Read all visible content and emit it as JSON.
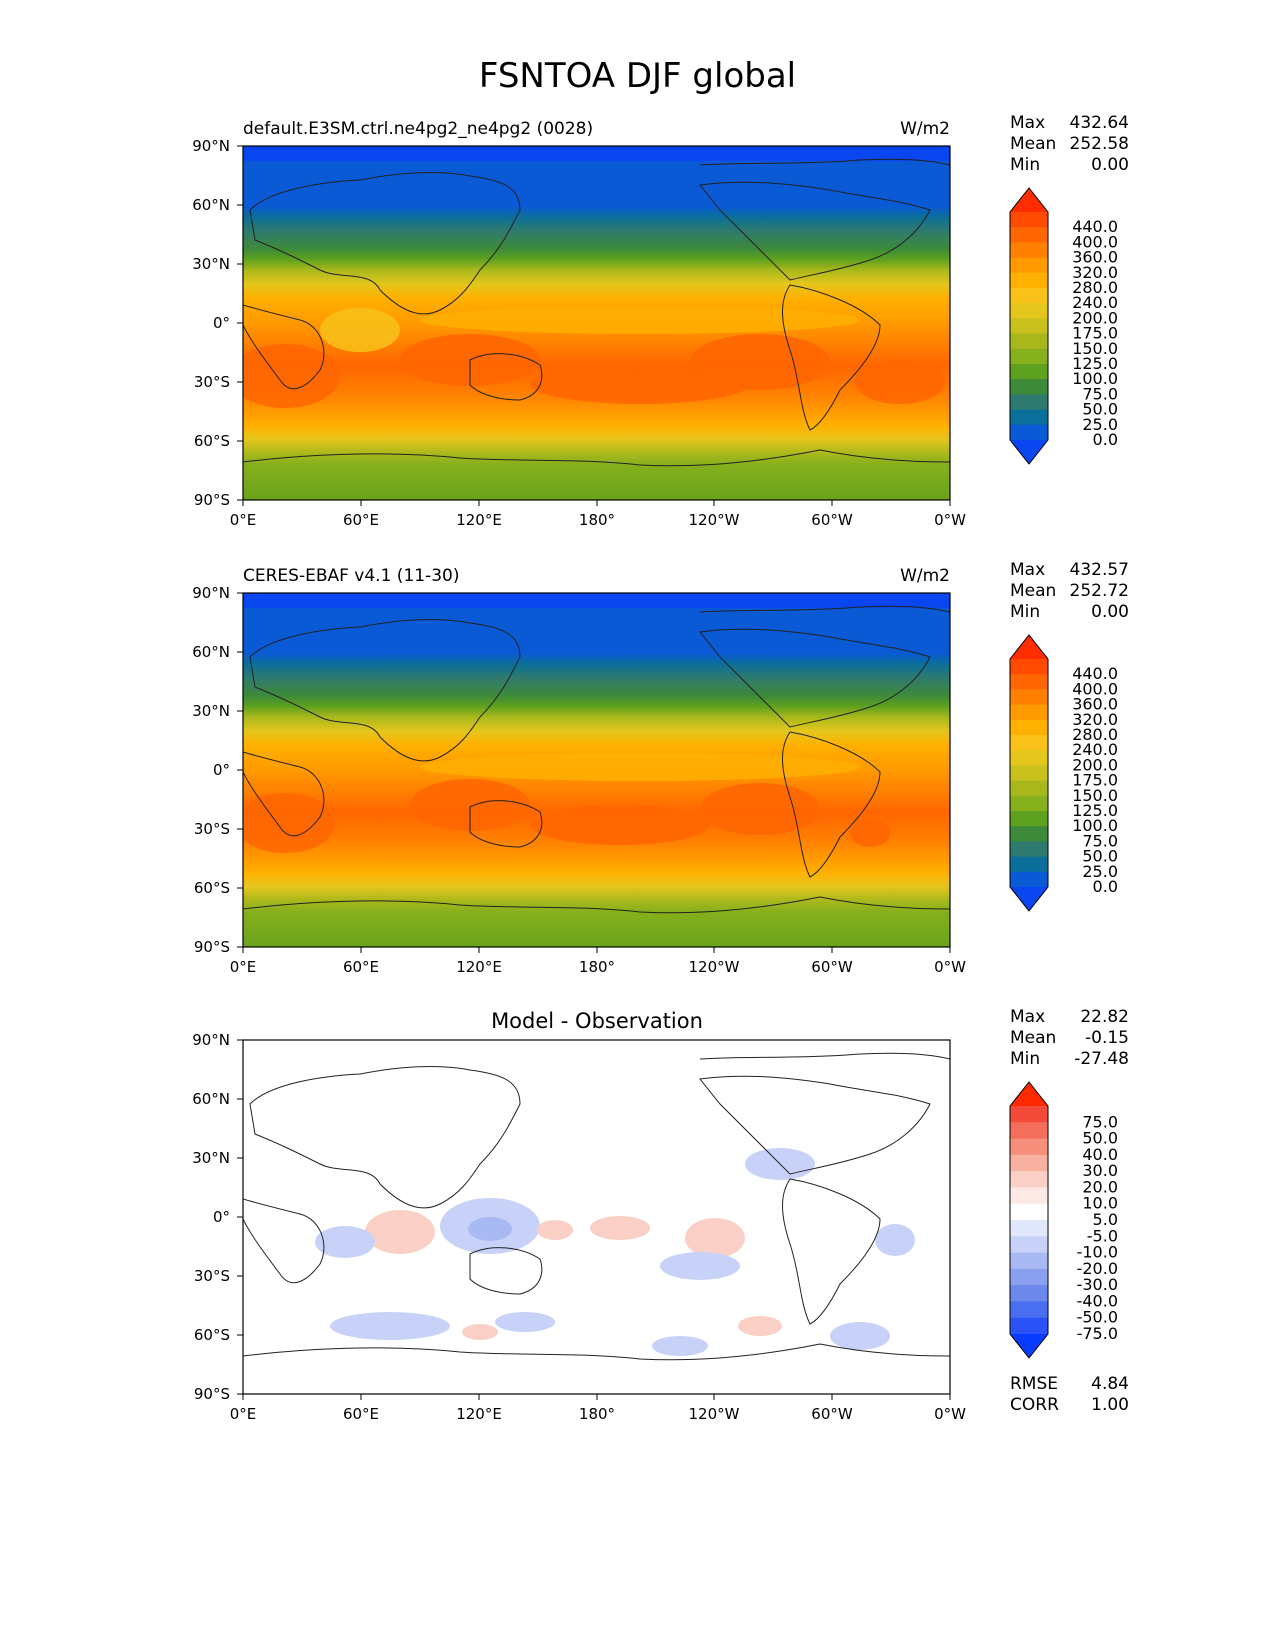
{
  "figure": {
    "title": "FSNTOA DJF global"
  },
  "axes": {
    "lat_ticks": [
      "90°N",
      "60°N",
      "30°N",
      "0°",
      "30°S",
      "60°S",
      "90°S"
    ],
    "lon_ticks": [
      "0°E",
      "60°E",
      "120°E",
      "180°",
      "120°W",
      "60°W",
      "0°W"
    ]
  },
  "panels": [
    {
      "id": "model",
      "left_title": "default.E3SM.ctrl.ne4pg2_ne4pg2 (0028)",
      "center_title": "",
      "units": "W/m2",
      "stats": {
        "labels": [
          "Max",
          "Mean",
          "Min"
        ],
        "values": [
          "432.64",
          "252.58",
          "0.00"
        ]
      },
      "colorbar": {
        "labels": [
          "440.0",
          "400.0",
          "360.0",
          "320.0",
          "280.0",
          "240.0",
          "200.0",
          "175.0",
          "150.0",
          "125.0",
          "100.0",
          "75.0",
          "50.0",
          "25.0",
          "0.0"
        ],
        "colors": [
          "#ff2d00",
          "#ff4a00",
          "#ff6600",
          "#ff8000",
          "#ff9a00",
          "#ffb000",
          "#f8c21a",
          "#e4c61c",
          "#c8c01c",
          "#a8b81c",
          "#86b01c",
          "#5ea11e",
          "#3d8a3a",
          "#2f7a6e",
          "#0a6f9a",
          "#0a5ad6",
          "#0a46f0"
        ]
      }
    },
    {
      "id": "obs",
      "left_title": "CERES-EBAF v4.1 (11-30)",
      "center_title": "",
      "units": "W/m2",
      "stats": {
        "labels": [
          "Max",
          "Mean",
          "Min"
        ],
        "values": [
          "432.57",
          "252.72",
          "0.00"
        ]
      },
      "colorbar": {
        "labels": [
          "440.0",
          "400.0",
          "360.0",
          "320.0",
          "280.0",
          "240.0",
          "200.0",
          "175.0",
          "150.0",
          "125.0",
          "100.0",
          "75.0",
          "50.0",
          "25.0",
          "0.0"
        ],
        "colors": [
          "#ff2d00",
          "#ff4a00",
          "#ff6600",
          "#ff8000",
          "#ff9a00",
          "#ffb000",
          "#f8c21a",
          "#e4c61c",
          "#c8c01c",
          "#a8b81c",
          "#86b01c",
          "#5ea11e",
          "#3d8a3a",
          "#2f7a6e",
          "#0a6f9a",
          "#0a5ad6",
          "#0a46f0"
        ]
      }
    },
    {
      "id": "diff",
      "left_title": "",
      "center_title": "Model - Observation",
      "units": "",
      "stats": {
        "labels": [
          "Max",
          "Mean",
          "Min"
        ],
        "values": [
          "22.82",
          "-0.15",
          "-27.48"
        ]
      },
      "colorbar": {
        "labels": [
          "75.0",
          "50.0",
          "40.0",
          "30.0",
          "20.0",
          "10.0",
          "5.0",
          "-5.0",
          "-10.0",
          "-20.0",
          "-30.0",
          "-40.0",
          "-50.0",
          "-75.0"
        ],
        "colors": [
          "#ff2a00",
          "#f34a3a",
          "#f46e5c",
          "#f6907c",
          "#f8b0a0",
          "#fad0c6",
          "#fce8e4",
          "#ffffff",
          "#e2e8fb",
          "#c8d2f8",
          "#a9b9f3",
          "#8aa0ef",
          "#6b88ea",
          "#4a6ef0",
          "#2a52f6",
          "#0a3cff"
        ]
      },
      "extra": {
        "labels": [
          "RMSE",
          "CORR"
        ],
        "values": [
          "4.84",
          "1.00"
        ]
      }
    }
  ],
  "chart_data": [
    {
      "type": "heatmap",
      "title": "default.E3SM.ctrl.ne4pg2_ne4pg2 (0028)",
      "units": "W/m2",
      "xlim": [
        0,
        360
      ],
      "ylim": [
        -90,
        90
      ],
      "zonal_profile": {
        "lat": [
          90,
          80,
          70,
          60,
          50,
          40,
          30,
          20,
          10,
          0,
          -10,
          -20,
          -30,
          -40,
          -50,
          -60,
          -70,
          -80,
          -90
        ],
        "value": [
          5,
          20,
          40,
          60,
          110,
          160,
          230,
          270,
          290,
          300,
          330,
          350,
          360,
          330,
          280,
          250,
          150,
          130,
          130
        ]
      },
      "stats": {
        "max": 432.64,
        "mean": 252.58,
        "min": 0.0
      }
    },
    {
      "type": "heatmap",
      "title": "CERES-EBAF v4.1 (11-30)",
      "units": "W/m2",
      "xlim": [
        0,
        360
      ],
      "ylim": [
        -90,
        90
      ],
      "zonal_profile": {
        "lat": [
          90,
          80,
          70,
          60,
          50,
          40,
          30,
          20,
          10,
          0,
          -10,
          -20,
          -30,
          -40,
          -50,
          -60,
          -70,
          -80,
          -90
        ],
        "value": [
          5,
          20,
          40,
          60,
          110,
          160,
          230,
          270,
          290,
          300,
          330,
          355,
          360,
          330,
          280,
          250,
          150,
          130,
          130
        ]
      },
      "stats": {
        "max": 432.57,
        "mean": 252.72,
        "min": 0.0
      }
    },
    {
      "type": "heatmap",
      "title": "Model - Observation",
      "xlim": [
        0,
        360
      ],
      "ylim": [
        -90,
        90
      ],
      "anomalies": [
        {
          "lon": 75,
          "lat": -10,
          "value": 12
        },
        {
          "lon": 55,
          "lat": -12,
          "value": -12
        },
        {
          "lon": 120,
          "lat": -2,
          "value": -15
        },
        {
          "lon": 165,
          "lat": -5,
          "value": 8
        },
        {
          "lon": 180,
          "lat": -3,
          "value": 8
        },
        {
          "lon": 222,
          "lat": -8,
          "value": 12
        },
        {
          "lon": 208,
          "lat": -22,
          "value": -15
        },
        {
          "lon": 300,
          "lat": 18,
          "value": -10
        },
        {
          "lon": 340,
          "lat": -10,
          "value": -10
        },
        {
          "lon": 40,
          "lat": -50,
          "value": -8
        },
        {
          "lon": 270,
          "lat": -55,
          "value": 8
        },
        {
          "lon": 330,
          "lat": -48,
          "value": -8
        }
      ],
      "stats": {
        "max": 22.82,
        "mean": -0.15,
        "min": -27.48,
        "rmse": 4.84,
        "corr": 1.0
      }
    }
  ]
}
